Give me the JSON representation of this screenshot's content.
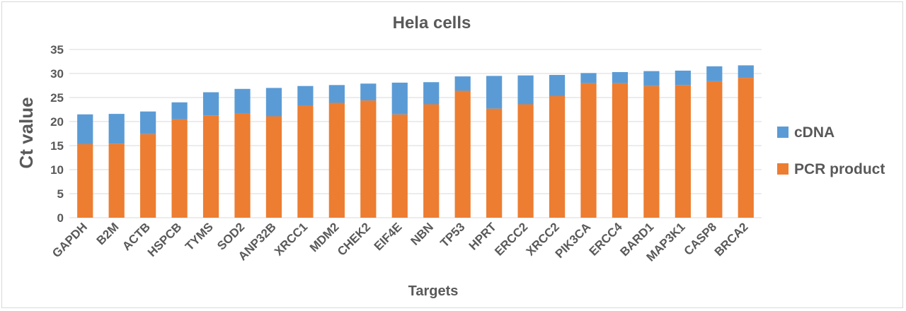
{
  "chart_data": {
    "type": "bar",
    "stacked": true,
    "title": "Hela cells",
    "xlabel": "Targets",
    "ylabel": "Ct value",
    "ylim": [
      0,
      35
    ],
    "yticks": [
      0,
      5,
      10,
      15,
      20,
      25,
      30,
      35
    ],
    "grid": true,
    "legend_position": "right",
    "categories": [
      "GAPDH",
      "B2M",
      "ACTB",
      "HSPCB",
      "TYMS",
      "SOD2",
      "ANP32B",
      "XRCC1",
      "MDM2",
      "CHEK2",
      "EIF4E",
      "NBN",
      "TP53",
      "HPRT",
      "ERCC2",
      "XRCC2",
      "PIK3CA",
      "ERCC4",
      "BARD1",
      "MAP3K1",
      "CASP8",
      "BRCA2"
    ],
    "series": [
      {
        "name": "PCR product",
        "color": "#ed7d31",
        "values": [
          15.3,
          15.4,
          17.4,
          20.5,
          21.3,
          21.7,
          21.1,
          23.3,
          23.9,
          24.4,
          21.5,
          23.6,
          26.4,
          22.7,
          23.6,
          25.3,
          28.0,
          28.0,
          27.4,
          27.6,
          28.4,
          29.1
        ]
      },
      {
        "name": "cDNA",
        "color": "#5b9bd5",
        "values": [
          6.2,
          6.2,
          4.7,
          3.5,
          4.8,
          5.1,
          5.9,
          4.1,
          3.7,
          3.5,
          6.6,
          4.6,
          3.0,
          6.8,
          6.0,
          4.4,
          2.1,
          2.3,
          3.1,
          3.0,
          3.1,
          2.6
        ]
      }
    ],
    "legend": [
      {
        "name": "cDNA",
        "color": "#5b9bd5"
      },
      {
        "name": "PCR product",
        "color": "#ed7d31"
      }
    ]
  }
}
